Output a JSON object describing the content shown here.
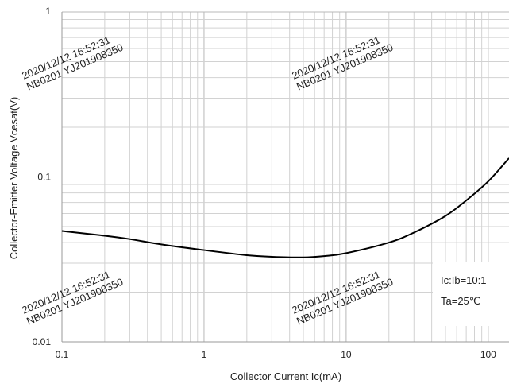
{
  "chart_data": {
    "type": "line",
    "xlabel": "Collector Current   Ic(mA)",
    "ylabel": "Collector-Emitter Voltage   Vcesat(V)",
    "x_scale": "log",
    "y_scale": "log",
    "xlim": [
      0.1,
      140
    ],
    "ylim": [
      0.01,
      1
    ],
    "x_ticks": [
      "0.1",
      "1",
      "10",
      "100"
    ],
    "y_ticks": [
      "0.01",
      "0.1",
      "1"
    ],
    "grid": true,
    "series": [
      {
        "x": [
          0.1,
          0.2,
          0.3,
          0.5,
          1,
          2,
          3,
          5,
          7,
          10,
          20,
          30,
          50,
          70,
          100,
          140
        ],
        "y": [
          0.047,
          0.044,
          0.042,
          0.039,
          0.036,
          0.0335,
          0.0328,
          0.0325,
          0.0331,
          0.0345,
          0.04,
          0.046,
          0.058,
          0.072,
          0.094,
          0.13
        ]
      }
    ],
    "annotations": [
      "Ic:Ib=10:1",
      "Ta=25℃"
    ],
    "line_color": "#000000"
  },
  "watermark": {
    "line1": "2020/12/12  16:52:31",
    "line2": "NB0201 YJ201908350"
  }
}
